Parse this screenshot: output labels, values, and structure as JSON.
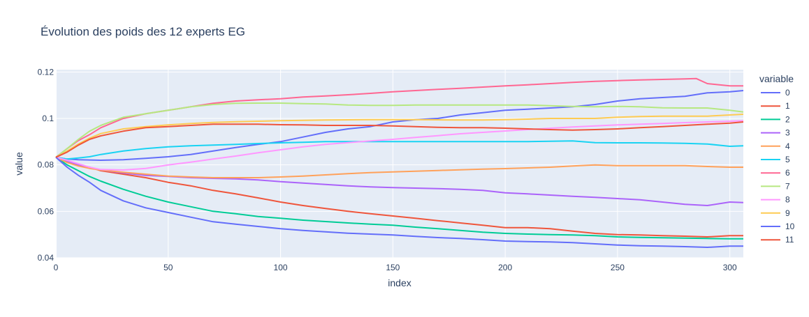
{
  "chart_data": {
    "type": "line",
    "title": "Évolution des poids des 12 experts EG",
    "xlabel": "index",
    "ylabel": "value",
    "xlim": [
      0,
      306
    ],
    "ylim": [
      0.04,
      0.121
    ],
    "x_ticks": [
      0,
      50,
      100,
      150,
      200,
      250,
      300
    ],
    "x_tick_labels": [
      "0",
      "50",
      "100",
      "150",
      "200",
      "250",
      "300"
    ],
    "y_ticks": [
      0.04,
      0.06,
      0.08,
      0.1,
      0.12
    ],
    "y_tick_labels": [
      "0.04",
      "0.06",
      "0.08",
      "0.1",
      "0.12"
    ],
    "grid": true,
    "legend_title": "variable",
    "legend_position": "right",
    "plot_background": "#E5ECF6",
    "series": [
      {
        "name": "0",
        "color": "#636EFA",
        "x": [
          0,
          5,
          10,
          20,
          30,
          40,
          50,
          60,
          70,
          80,
          90,
          100,
          110,
          120,
          130,
          140,
          150,
          160,
          170,
          180,
          190,
          200,
          210,
          220,
          230,
          240,
          250,
          260,
          270,
          280,
          290,
          300,
          306
        ],
        "values": [
          0.0833,
          0.0825,
          0.0822,
          0.082,
          0.0822,
          0.0828,
          0.0835,
          0.0845,
          0.086,
          0.0875,
          0.0888,
          0.09,
          0.092,
          0.094,
          0.0955,
          0.0965,
          0.0985,
          0.0995,
          0.1,
          0.1015,
          0.1025,
          0.1035,
          0.104,
          0.1045,
          0.105,
          0.106,
          0.1075,
          0.1085,
          0.109,
          0.1095,
          0.111,
          0.1115,
          0.112
        ]
      },
      {
        "name": "1",
        "color": "#EF553B",
        "x": [
          0,
          5,
          10,
          15,
          20,
          30,
          40,
          50,
          60,
          70,
          80,
          90,
          100,
          110,
          120,
          130,
          140,
          150,
          160,
          170,
          180,
          190,
          200,
          210,
          220,
          230,
          240,
          250,
          260,
          270,
          280,
          290,
          300,
          306
        ],
        "values": [
          0.0833,
          0.0815,
          0.08,
          0.079,
          0.0775,
          0.076,
          0.0745,
          0.0725,
          0.071,
          0.069,
          0.0675,
          0.0658,
          0.064,
          0.0625,
          0.0612,
          0.06,
          0.059,
          0.058,
          0.057,
          0.056,
          0.055,
          0.054,
          0.053,
          0.053,
          0.0525,
          0.0515,
          0.0505,
          0.05,
          0.0498,
          0.0495,
          0.0493,
          0.049,
          0.0495,
          0.0495
        ]
      },
      {
        "name": "2",
        "color": "#00CC96",
        "x": [
          0,
          5,
          10,
          15,
          20,
          30,
          40,
          50,
          60,
          70,
          80,
          90,
          100,
          110,
          120,
          130,
          140,
          150,
          160,
          170,
          180,
          190,
          200,
          210,
          220,
          230,
          240,
          250,
          260,
          270,
          280,
          290,
          300,
          306
        ],
        "values": [
          0.0833,
          0.08,
          0.0775,
          0.075,
          0.073,
          0.0695,
          0.0665,
          0.064,
          0.062,
          0.06,
          0.059,
          0.0578,
          0.057,
          0.0562,
          0.0556,
          0.055,
          0.0545,
          0.054,
          0.0532,
          0.0525,
          0.0518,
          0.051,
          0.0505,
          0.0502,
          0.05,
          0.0498,
          0.0495,
          0.049,
          0.0488,
          0.0486,
          0.0485,
          0.0483,
          0.0482,
          0.0482
        ]
      },
      {
        "name": "3",
        "color": "#AB63FA",
        "x": [
          0,
          5,
          10,
          15,
          20,
          30,
          40,
          50,
          60,
          70,
          80,
          90,
          100,
          110,
          120,
          130,
          140,
          150,
          160,
          170,
          180,
          190,
          200,
          210,
          220,
          230,
          240,
          250,
          260,
          270,
          280,
          290,
          300,
          306
        ],
        "values": [
          0.0833,
          0.0815,
          0.08,
          0.0788,
          0.0778,
          0.0765,
          0.0755,
          0.075,
          0.0745,
          0.0742,
          0.074,
          0.0735,
          0.0728,
          0.0722,
          0.0716,
          0.071,
          0.0705,
          0.0702,
          0.07,
          0.0698,
          0.0695,
          0.069,
          0.068,
          0.0675,
          0.067,
          0.0665,
          0.066,
          0.0655,
          0.065,
          0.064,
          0.063,
          0.0625,
          0.064,
          0.0638
        ]
      },
      {
        "name": "4",
        "color": "#FFA15A",
        "x": [
          0,
          5,
          10,
          15,
          20,
          30,
          40,
          50,
          60,
          70,
          80,
          90,
          100,
          110,
          120,
          130,
          140,
          150,
          160,
          170,
          180,
          190,
          200,
          210,
          220,
          230,
          240,
          250,
          260,
          270,
          280,
          290,
          300,
          306
        ],
        "values": [
          0.0833,
          0.081,
          0.0795,
          0.0785,
          0.0778,
          0.0768,
          0.076,
          0.0752,
          0.0748,
          0.0745,
          0.0745,
          0.0745,
          0.0748,
          0.0752,
          0.0757,
          0.0762,
          0.0767,
          0.077,
          0.0773,
          0.0776,
          0.0779,
          0.0782,
          0.0784,
          0.0787,
          0.079,
          0.0795,
          0.08,
          0.0797,
          0.0797,
          0.0797,
          0.0797,
          0.0793,
          0.079,
          0.079
        ]
      },
      {
        "name": "5",
        "color": "#19D3F3",
        "x": [
          0,
          5,
          10,
          15,
          20,
          30,
          40,
          50,
          60,
          70,
          80,
          90,
          100,
          110,
          120,
          130,
          140,
          150,
          160,
          170,
          180,
          190,
          200,
          210,
          220,
          230,
          240,
          250,
          260,
          270,
          280,
          290,
          300,
          306
        ],
        "values": [
          0.0833,
          0.0825,
          0.083,
          0.0835,
          0.0845,
          0.086,
          0.087,
          0.0878,
          0.0882,
          0.0885,
          0.0888,
          0.0892,
          0.0895,
          0.0897,
          0.09,
          0.09,
          0.09,
          0.09,
          0.09,
          0.09,
          0.09,
          0.09,
          0.09,
          0.09,
          0.0902,
          0.0903,
          0.0896,
          0.0895,
          0.0895,
          0.0894,
          0.0893,
          0.089,
          0.088,
          0.0882
        ]
      },
      {
        "name": "6",
        "color": "#FF6692",
        "x": [
          0,
          5,
          10,
          15,
          20,
          30,
          40,
          50,
          60,
          70,
          80,
          90,
          100,
          110,
          120,
          130,
          140,
          150,
          160,
          170,
          180,
          190,
          200,
          210,
          220,
          230,
          240,
          250,
          260,
          270,
          280,
          285,
          290,
          300,
          306
        ],
        "values": [
          0.0833,
          0.087,
          0.0905,
          0.093,
          0.096,
          0.1,
          0.102,
          0.1035,
          0.105,
          0.1065,
          0.1075,
          0.108,
          0.1085,
          0.1092,
          0.1097,
          0.1102,
          0.1108,
          0.1115,
          0.112,
          0.1125,
          0.113,
          0.1135,
          0.114,
          0.1145,
          0.115,
          0.1155,
          0.116,
          0.1163,
          0.1166,
          0.1168,
          0.117,
          0.1172,
          0.115,
          0.114,
          0.114
        ]
      },
      {
        "name": "7",
        "color": "#B6E880",
        "x": [
          0,
          5,
          10,
          15,
          20,
          30,
          40,
          50,
          60,
          70,
          80,
          90,
          100,
          110,
          120,
          130,
          140,
          150,
          160,
          170,
          180,
          190,
          200,
          210,
          220,
          230,
          240,
          250,
          260,
          270,
          280,
          290,
          300,
          306
        ],
        "values": [
          0.0833,
          0.087,
          0.091,
          0.0945,
          0.097,
          0.1005,
          0.102,
          0.1035,
          0.105,
          0.106,
          0.1065,
          0.1066,
          0.1066,
          0.1064,
          0.1062,
          0.1058,
          0.1056,
          0.1056,
          0.1058,
          0.1058,
          0.1058,
          0.1058,
          0.1058,
          0.1058,
          0.1055,
          0.1052,
          0.105,
          0.1052,
          0.105,
          0.1046,
          0.1045,
          0.1045,
          0.1035,
          0.1028
        ]
      },
      {
        "name": "8",
        "color": "#FF97FF",
        "x": [
          0,
          5,
          10,
          15,
          20,
          30,
          40,
          50,
          60,
          70,
          80,
          90,
          100,
          110,
          120,
          130,
          140,
          150,
          160,
          170,
          180,
          190,
          200,
          210,
          220,
          230,
          240,
          250,
          260,
          270,
          280,
          290,
          300,
          306
        ],
        "values": [
          0.0833,
          0.082,
          0.0805,
          0.079,
          0.078,
          0.0778,
          0.0785,
          0.08,
          0.0812,
          0.0825,
          0.0838,
          0.0852,
          0.0865,
          0.0878,
          0.0888,
          0.0896,
          0.0903,
          0.091,
          0.0918,
          0.0926,
          0.0934,
          0.094,
          0.0946,
          0.0952,
          0.0958,
          0.0963,
          0.0968,
          0.0972,
          0.0975,
          0.0978,
          0.0982,
          0.0985,
          0.0988,
          0.099
        ]
      },
      {
        "name": "9",
        "color": "#FECB52",
        "x": [
          0,
          5,
          10,
          15,
          20,
          30,
          40,
          50,
          60,
          70,
          80,
          90,
          100,
          110,
          120,
          130,
          140,
          150,
          160,
          170,
          180,
          190,
          200,
          210,
          220,
          230,
          240,
          250,
          260,
          270,
          280,
          290,
          300,
          306
        ],
        "values": [
          0.0833,
          0.086,
          0.089,
          0.0915,
          0.0935,
          0.0955,
          0.0965,
          0.0972,
          0.0978,
          0.0983,
          0.0986,
          0.0988,
          0.099,
          0.0992,
          0.0993,
          0.0994,
          0.0995,
          0.0995,
          0.0995,
          0.0994,
          0.0993,
          0.0993,
          0.0995,
          0.0997,
          0.1,
          0.1,
          0.1,
          0.1005,
          0.1008,
          0.101,
          0.101,
          0.101,
          0.1015,
          0.1018
        ]
      },
      {
        "name": "10",
        "color": "#636EFA",
        "x": [
          0,
          5,
          10,
          15,
          20,
          30,
          40,
          50,
          60,
          70,
          80,
          90,
          100,
          110,
          120,
          130,
          140,
          150,
          160,
          170,
          180,
          190,
          200,
          210,
          220,
          230,
          240,
          250,
          260,
          270,
          280,
          290,
          300,
          306
        ],
        "values": [
          0.0833,
          0.079,
          0.0755,
          0.0725,
          0.069,
          0.0645,
          0.0615,
          0.0595,
          0.0575,
          0.0555,
          0.0545,
          0.0535,
          0.0525,
          0.0518,
          0.0512,
          0.0506,
          0.0502,
          0.0498,
          0.0492,
          0.0487,
          0.0483,
          0.0478,
          0.0472,
          0.047,
          0.0468,
          0.0465,
          0.046,
          0.0455,
          0.0452,
          0.045,
          0.0448,
          0.0445,
          0.045,
          0.045
        ]
      },
      {
        "name": "11",
        "color": "#EF553B",
        "x": [
          0,
          5,
          10,
          15,
          20,
          30,
          40,
          50,
          60,
          70,
          80,
          90,
          100,
          110,
          120,
          130,
          140,
          150,
          160,
          170,
          180,
          190,
          200,
          210,
          220,
          230,
          240,
          250,
          260,
          270,
          280,
          290,
          300,
          306
        ],
        "values": [
          0.0833,
          0.0855,
          0.0885,
          0.091,
          0.0925,
          0.0945,
          0.096,
          0.0965,
          0.097,
          0.0975,
          0.0975,
          0.0975,
          0.0973,
          0.0972,
          0.097,
          0.097,
          0.097,
          0.0968,
          0.0965,
          0.0962,
          0.096,
          0.096,
          0.0958,
          0.0955,
          0.0952,
          0.095,
          0.0952,
          0.0955,
          0.096,
          0.0965,
          0.097,
          0.0975,
          0.098,
          0.0985
        ]
      }
    ]
  }
}
